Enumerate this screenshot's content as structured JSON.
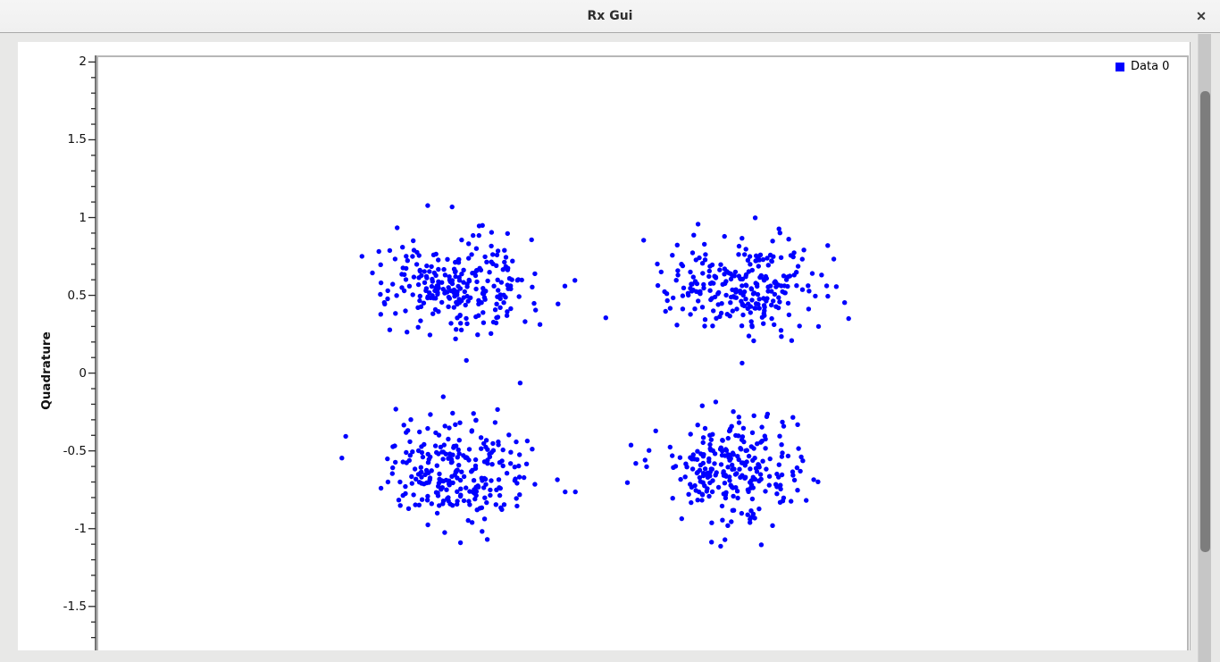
{
  "window": {
    "title": "Rx Gui",
    "close_icon": "✕"
  },
  "chart_data": {
    "type": "scatter",
    "title": "",
    "xlabel": "",
    "ylabel": "Quadrature",
    "x_axis_visible": false,
    "grid": false,
    "legend_position": "top-right",
    "y_ticks": [
      2,
      1.5,
      1,
      0.5,
      0,
      -0.5,
      -1,
      -1.5
    ],
    "y_minor_tick_step": 0.1,
    "xlim": [
      -2.15,
      2.509
    ],
    "ylim_visible": [
      -1.771,
      2.031
    ],
    "series": [
      {
        "name": "Data 0",
        "color": "#0000ff",
        "marker": "circle",
        "marker_px": 5.4,
        "seed": 7,
        "clusters": [
          {
            "cx": -0.6,
            "cy": 0.57,
            "sx": 0.162,
            "sy": 0.155,
            "n": 256
          },
          {
            "cx": 0.59,
            "cy": 0.565,
            "sx": 0.158,
            "sy": 0.158,
            "n": 256
          },
          {
            "cx": -0.615,
            "cy": -0.615,
            "sx": 0.15,
            "sy": 0.163,
            "n": 256
          },
          {
            "cx": 0.575,
            "cy": -0.605,
            "sx": 0.148,
            "sy": 0.165,
            "n": 256
          }
        ]
      }
    ],
    "description": "QPSK constellation: four Gaussian clusters of received symbols near (±0.6, ±0.6)"
  }
}
